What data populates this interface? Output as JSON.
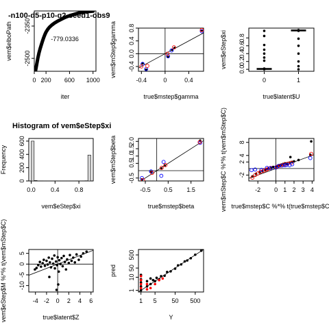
{
  "chart_data": [
    {
      "id": "p1",
      "type": "line",
      "title": "-n100-d5-p10-q2-seed1-obs9",
      "xlabel": "iter",
      "ylabel": "vem$elboPath",
      "xlim": [
        0,
        1050
      ],
      "ylim": [
        -2560,
        -2280
      ],
      "xticks": [
        0,
        200,
        600,
        1000
      ],
      "yticks": [
        -2500,
        -2350
      ],
      "ytick_labels": [
        "-2500",
        "-2350"
      ],
      "annotation": {
        "text": "-779.0336",
        "x": 520,
        "y": -2420
      },
      "x": [
        20,
        40,
        60,
        80,
        100,
        120,
        140,
        160,
        180,
        200,
        230,
        260,
        300,
        350,
        400,
        450,
        500,
        550,
        600,
        650,
        700,
        750,
        800,
        850,
        900,
        950,
        1000
      ],
      "y": [
        -2560,
        -2530,
        -2500,
        -2475,
        -2455,
        -2437,
        -2420,
        -2404,
        -2390,
        -2378,
        -2365,
        -2355,
        -2345,
        -2335,
        -2327,
        -2320,
        -2313,
        -2307,
        -2302,
        -2298,
        -2294,
        -2290,
        -2287,
        -2285,
        -2283,
        -2282,
        -2281
      ]
    },
    {
      "id": "p2",
      "type": "scatter",
      "title": "",
      "xlabel": "true$mstep$gamma",
      "ylabel": "vem$mStep$gamma",
      "xlim": [
        -0.45,
        0.65
      ],
      "ylim": [
        -0.55,
        0.8
      ],
      "xticks": [
        -0.4,
        0,
        0.4
      ],
      "yticks": [
        -0.4,
        0,
        0.4,
        0.8
      ],
      "ytick_labels": [
        "-0.4",
        "0.0",
        "0.4",
        "0.8"
      ],
      "vline": 0,
      "hline": 0,
      "abline": [
        0,
        1
      ],
      "series": [
        {
          "color": "#000000",
          "style": "filled",
          "points": [
            [
              -0.38,
              -0.3
            ],
            [
              -0.32,
              -0.5
            ],
            [
              0.05,
              -0.1
            ],
            [
              0.12,
              0.12
            ],
            [
              0.16,
              0.18
            ],
            [
              0.62,
              0.72
            ]
          ]
        },
        {
          "color": "#0000ff",
          "style": "open",
          "points": [
            [
              -0.38,
              -0.32
            ],
            [
              -0.32,
              -0.48
            ],
            [
              0.05,
              -0.08
            ],
            [
              0.11,
              0.1
            ],
            [
              0.62,
              0.7
            ]
          ]
        },
        {
          "color": "#ff0000",
          "style": "open",
          "points": [
            [
              -0.4,
              -0.4
            ],
            [
              -0.3,
              -0.38
            ],
            [
              0.04,
              0.0
            ],
            [
              0.15,
              0.2
            ],
            [
              0.62,
              0.74
            ]
          ]
        }
      ]
    },
    {
      "id": "p3",
      "type": "scatter",
      "title": "",
      "xlabel": "true$latent$U",
      "ylabel": "vem$eStep$xi",
      "xlim": [
        -0.45,
        1.45
      ],
      "ylim": [
        -0.05,
        1.05
      ],
      "xticks": [
        0,
        1
      ],
      "yticks": [
        0,
        0.2,
        0.4,
        0.6,
        0.8
      ],
      "ytick_labels": [
        "0.0",
        "0.2",
        "0.4",
        "0.6",
        "0.8"
      ],
      "series": [
        {
          "color": "#000000",
          "style": "filled",
          "points": [
            [
              0,
              0.0
            ],
            [
              0,
              0.01
            ],
            [
              0,
              0.02
            ],
            [
              0,
              0.22
            ],
            [
              0,
              0.3
            ],
            [
              0,
              0.4
            ],
            [
              0,
              0.5
            ],
            [
              0,
              0.62
            ],
            [
              0,
              0.85
            ],
            [
              0,
              0.98
            ],
            [
              1,
              1.0
            ],
            [
              1,
              0.99
            ],
            [
              1,
              0.98
            ],
            [
              1,
              0.78
            ],
            [
              1,
              0.6
            ],
            [
              1,
              0.4
            ],
            [
              1,
              0.2
            ],
            [
              1,
              0.08
            ],
            [
              1,
              0.0
            ]
          ]
        },
        {
          "color": "#000000",
          "style": "band",
          "points": [
            [
              0,
              0.0
            ],
            [
              0,
              0.005
            ],
            [
              0,
              0.01
            ],
            [
              0,
              0.015
            ],
            [
              0,
              0.02
            ],
            [
              1,
              1.0
            ],
            [
              1,
              0.995
            ],
            [
              1,
              0.99
            ],
            [
              1,
              0.985
            ],
            [
              1,
              0.98
            ]
          ]
        }
      ]
    },
    {
      "id": "p4",
      "type": "bar",
      "title": "Histogram of vem$eStep$xi",
      "xlabel": "vem$eStep$xi",
      "ylabel": "Frequency",
      "xlim": [
        -0.04,
        1.04
      ],
      "ylim": [
        0,
        640
      ],
      "xticks": [
        0,
        0.4,
        0.8
      ],
      "yticks": [
        0,
        200,
        400,
        600
      ],
      "xtick_labels": [
        "0.0",
        "0.4",
        "0.8"
      ],
      "bin_edges": [
        0,
        0.05,
        0.1,
        0.15,
        0.2,
        0.25,
        0.3,
        0.35,
        0.4,
        0.45,
        0.5,
        0.55,
        0.6,
        0.65,
        0.7,
        0.75,
        0.8,
        0.85,
        0.9,
        0.95,
        1.0
      ],
      "values": [
        600,
        6,
        2,
        2,
        1,
        1,
        1,
        1,
        1,
        1,
        1,
        1,
        1,
        1,
        1,
        2,
        1,
        2,
        3,
        390
      ]
    },
    {
      "id": "p5",
      "type": "scatter",
      "title": "",
      "xlabel": "true$mstep$beta",
      "ylabel": "vem$mStep$beta",
      "xlim": [
        -0.8,
        2.05
      ],
      "ylim": [
        -0.7,
        2.2
      ],
      "xticks": [
        -0.5,
        0.5,
        1.5
      ],
      "yticks": [
        -0.5,
        0.5,
        1.0,
        1.5,
        2.0
      ],
      "ytick_labels": [
        "-0.5",
        "0.5",
        "1.0",
        "1.5",
        "2.0"
      ],
      "vline": 0,
      "hline": 0,
      "abline": [
        0,
        1
      ],
      "series": [
        {
          "color": "#000000",
          "style": "filled",
          "points": [
            [
              -0.65,
              -0.6
            ],
            [
              -0.25,
              -0.1
            ],
            [
              0.2,
              0.15
            ],
            [
              0.35,
              0.35
            ],
            [
              1.9,
              2.05
            ]
          ]
        },
        {
          "color": "#0000ff",
          "style": "open",
          "points": [
            [
              -0.65,
              -0.5
            ],
            [
              -0.25,
              -0.05
            ],
            [
              0.2,
              -0.35
            ],
            [
              0.3,
              0.6
            ],
            [
              1.9,
              1.9
            ]
          ]
        },
        {
          "color": "#ff0000",
          "style": "open",
          "points": [
            [
              -0.6,
              -0.65
            ],
            [
              -0.2,
              -0.15
            ],
            [
              0.22,
              0.2
            ],
            [
              0.38,
              0.38
            ],
            [
              1.88,
              1.95
            ]
          ]
        }
      ]
    },
    {
      "id": "p6",
      "type": "scatter",
      "title": "",
      "xlabel": "true$mstep$C %*% t(true$mstep$C)",
      "ylabel": "vem$mStep$C %*% t(vem$mStep$C)",
      "xlim": [
        -3.0,
        4.2
      ],
      "ylim": [
        -3.8,
        9.2
      ],
      "xticks": [
        -2,
        0,
        1,
        2,
        3,
        4
      ],
      "yticks": [
        -2,
        2,
        4,
        8
      ],
      "vline": 0,
      "hline": 0,
      "abline": [
        0,
        1
      ],
      "series": [
        {
          "color": "#000000",
          "style": "filled",
          "points": [
            [
              -2.6,
              -2.4
            ],
            [
              -2.2,
              -1.6
            ],
            [
              -1.8,
              -1.2
            ],
            [
              -1.5,
              -0.8
            ],
            [
              -1.2,
              -0.5
            ],
            [
              -1.0,
              -0.2
            ],
            [
              -0.8,
              0.0
            ],
            [
              -0.5,
              0.3
            ],
            [
              -0.3,
              0.5
            ],
            [
              0.0,
              0.6
            ],
            [
              0.2,
              0.8
            ],
            [
              0.4,
              1.0
            ],
            [
              0.6,
              1.2
            ],
            [
              0.8,
              1.4
            ],
            [
              1.0,
              1.6
            ],
            [
              1.2,
              1.5
            ],
            [
              1.5,
              1.8
            ],
            [
              1.8,
              2.0
            ],
            [
              2.0,
              2.2
            ],
            [
              2.5,
              2.6
            ],
            [
              3.9,
              8.3
            ],
            [
              3.8,
              4.2
            ],
            [
              1.6,
              3.5
            ]
          ]
        },
        {
          "color": "#ff0000",
          "style": "open",
          "points": [
            [
              -2.6,
              -2.8
            ],
            [
              -2.3,
              -2.0
            ],
            [
              -2.0,
              -1.5
            ],
            [
              -1.7,
              -1.0
            ],
            [
              -1.4,
              -0.7
            ],
            [
              -1.1,
              -0.4
            ],
            [
              -0.9,
              -0.1
            ],
            [
              -0.6,
              0.2
            ],
            [
              0.1,
              0.5
            ],
            [
              0.5,
              0.9
            ],
            [
              0.9,
              1.2
            ],
            [
              1.3,
              1.5
            ],
            [
              1.7,
              1.8
            ],
            [
              3.9,
              4.5
            ]
          ]
        },
        {
          "color": "#0000ff",
          "style": "open",
          "points": [
            [
              -2.7,
              -0.5
            ],
            [
              -2.3,
              -0.3
            ],
            [
              -1.6,
              -0.4
            ],
            [
              -1.0,
              0.2
            ],
            [
              -0.6,
              0.1
            ],
            [
              0.0,
              0.3
            ],
            [
              0.3,
              0.8
            ],
            [
              0.7,
              0.9
            ],
            [
              1.0,
              1.0
            ],
            [
              1.2,
              1.1
            ],
            [
              1.5,
              1.0
            ],
            [
              1.8,
              1.3
            ],
            [
              3.8,
              3.2
            ]
          ]
        }
      ]
    },
    {
      "id": "p7",
      "type": "scatter",
      "title": "",
      "xlabel": "true$latent$Z",
      "ylabel": "vem$eStep$M %*% t(vem$mStep$C)",
      "xlim": [
        -5.2,
        6.4
      ],
      "ylim": [
        -13.0,
        6.8
      ],
      "xticks": [
        -4,
        -2,
        0,
        2,
        4,
        6
      ],
      "yticks": [
        -10,
        -5,
        0,
        5
      ],
      "vline": 0,
      "hline": 0,
      "abline": [
        0,
        1
      ],
      "series": [
        {
          "color": "#000000",
          "style": "filled",
          "points": [
            [
              -4.1,
              -2.5
            ],
            [
              -3.8,
              -1.8
            ],
            [
              -3.5,
              -0.5
            ],
            [
              -3.2,
              1.0
            ],
            [
              -3.0,
              -1.2
            ],
            [
              -2.7,
              0.4
            ],
            [
              -2.5,
              2.0
            ],
            [
              -2.3,
              -0.8
            ],
            [
              -2.0,
              1.5
            ],
            [
              -1.8,
              -0.2
            ],
            [
              -1.6,
              3.0
            ],
            [
              -1.4,
              0.8
            ],
            [
              -1.2,
              -1.5
            ],
            [
              -1.0,
              2.5
            ],
            [
              -0.8,
              0.2
            ],
            [
              -0.6,
              4.0
            ],
            [
              -0.5,
              -2.0
            ],
            [
              -0.3,
              1.2
            ],
            [
              -0.1,
              -0.5
            ],
            [
              0.0,
              3.2
            ],
            [
              0.2,
              -3.5
            ],
            [
              0.3,
              1.8
            ],
            [
              0.5,
              0.0
            ],
            [
              0.7,
              2.8
            ],
            [
              0.9,
              -1.0
            ],
            [
              1.1,
              3.8
            ],
            [
              1.3,
              1.0
            ],
            [
              1.5,
              -2.5
            ],
            [
              1.7,
              2.2
            ],
            [
              2.0,
              0.5
            ],
            [
              2.2,
              4.2
            ],
            [
              2.5,
              1.5
            ],
            [
              2.8,
              3.0
            ],
            [
              3.1,
              0.8
            ],
            [
              3.4,
              4.5
            ],
            [
              3.8,
              2.0
            ],
            [
              4.2,
              3.5
            ],
            [
              4.6,
              5.0
            ],
            [
              5.2,
              5.8
            ],
            [
              -0.2,
              -12.0
            ],
            [
              0.1,
              -9.5
            ],
            [
              -1.5,
              -6.0
            ]
          ]
        }
      ]
    },
    {
      "id": "p8",
      "type": "scatter",
      "title": "",
      "xlabel": "Y",
      "ylabel": "pred",
      "log_x": true,
      "log_y": true,
      "xlim": [
        0.75,
        1300
      ],
      "ylim": [
        0.75,
        1300
      ],
      "xticks": [
        1,
        5,
        50,
        500
      ],
      "yticks": [
        1,
        10,
        50,
        500
      ],
      "abline": [
        0,
        1
      ],
      "series": [
        {
          "color": "#000000",
          "style": "filled",
          "points": [
            [
              1,
              1
            ],
            [
              1,
              2
            ],
            [
              1,
              4
            ],
            [
              1,
              7
            ],
            [
              1,
              15
            ],
            [
              2,
              2
            ],
            [
              2,
              5
            ],
            [
              3,
              3
            ],
            [
              3,
              8
            ],
            [
              4,
              6
            ],
            [
              5,
              5
            ],
            [
              6,
              9
            ],
            [
              8,
              7
            ],
            [
              10,
              12
            ],
            [
              15,
              13
            ],
            [
              20,
              25
            ],
            [
              30,
              28
            ],
            [
              50,
              45
            ],
            [
              70,
              80
            ],
            [
              100,
              95
            ],
            [
              150,
              160
            ],
            [
              200,
              190
            ],
            [
              300,
              280
            ],
            [
              500,
              520
            ],
            [
              1000,
              1050
            ]
          ]
        },
        {
          "color": "#ff0000",
          "style": "filled",
          "points": [
            [
              1,
              1.5
            ],
            [
              1,
              3
            ],
            [
              1,
              6
            ],
            [
              1,
              12
            ],
            [
              2,
              1.2
            ],
            [
              2,
              3
            ],
            [
              3,
              1.5
            ],
            [
              5,
              3
            ],
            [
              8,
              6
            ],
            [
              12,
              8
            ]
          ]
        }
      ]
    }
  ]
}
